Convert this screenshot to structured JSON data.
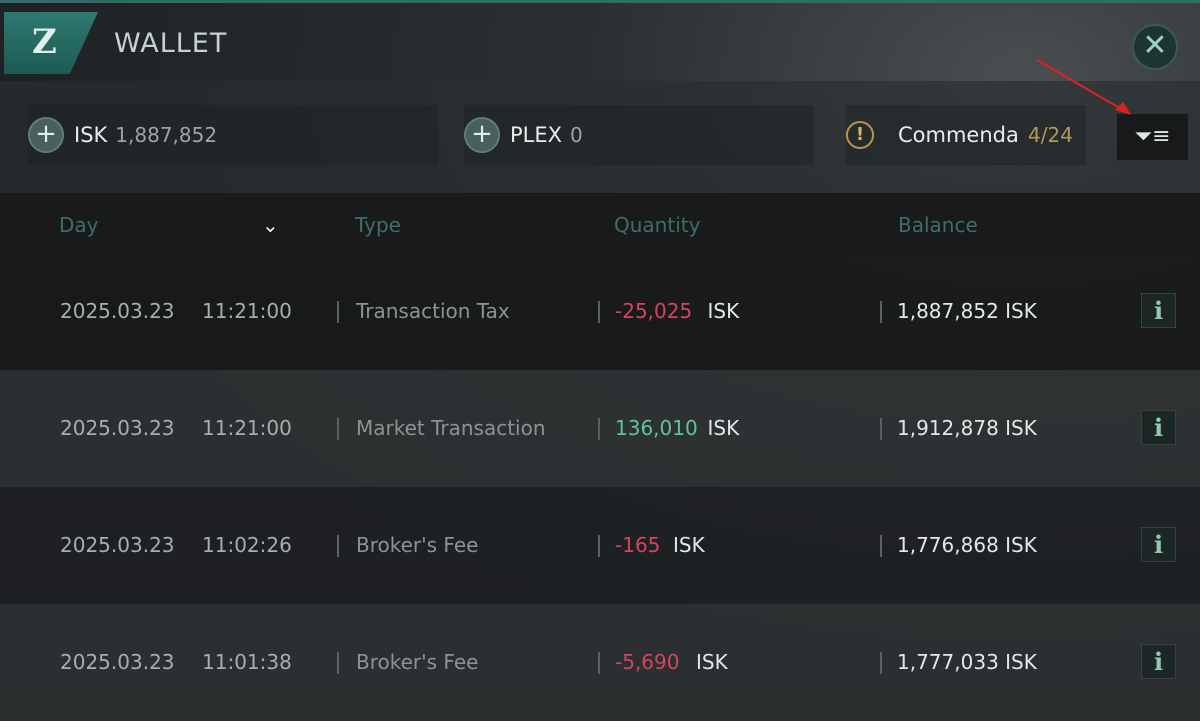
{
  "window": {
    "title": "WALLET",
    "logo": "Z",
    "close_icon": "close-icon"
  },
  "currencies": [
    {
      "name": "ISK",
      "value": "1,887,852"
    },
    {
      "name": "PLEX",
      "value": "0"
    },
    {
      "name": "Commenda",
      "value": "4/24"
    }
  ],
  "filter_icon": "filter-icon",
  "columns": {
    "day": "Day",
    "type": "Type",
    "quantity": "Quantity",
    "balance": "Balance"
  },
  "rows": [
    {
      "date": "2025.03.23",
      "time": "11:21:00",
      "type": "Transaction Tax",
      "amount": "-25,025",
      "unit": "ISK",
      "balance": "1,887,852 ISK",
      "sign": "neg"
    },
    {
      "date": "2025.03.23",
      "time": "11:21:00",
      "type": "Market Transaction",
      "amount": "136,010",
      "unit": "ISK",
      "balance": "1,912,878 ISK",
      "sign": "pos"
    },
    {
      "date": "2025.03.23",
      "time": "11:02:26",
      "type": "Broker's Fee",
      "amount": "-165",
      "unit": "ISK",
      "balance": "1,776,868 ISK",
      "sign": "neg"
    },
    {
      "date": "2025.03.23",
      "time": "11:01:38",
      "type": "Broker's Fee",
      "amount": "-5,690",
      "unit": "ISK",
      "balance": "1,777,033 ISK",
      "sign": "neg"
    }
  ],
  "info_label": "i",
  "colors": {
    "accent": "#2e7a70",
    "negative": "#d2455c",
    "positive": "#5fc39b",
    "gold": "#d6b565"
  }
}
